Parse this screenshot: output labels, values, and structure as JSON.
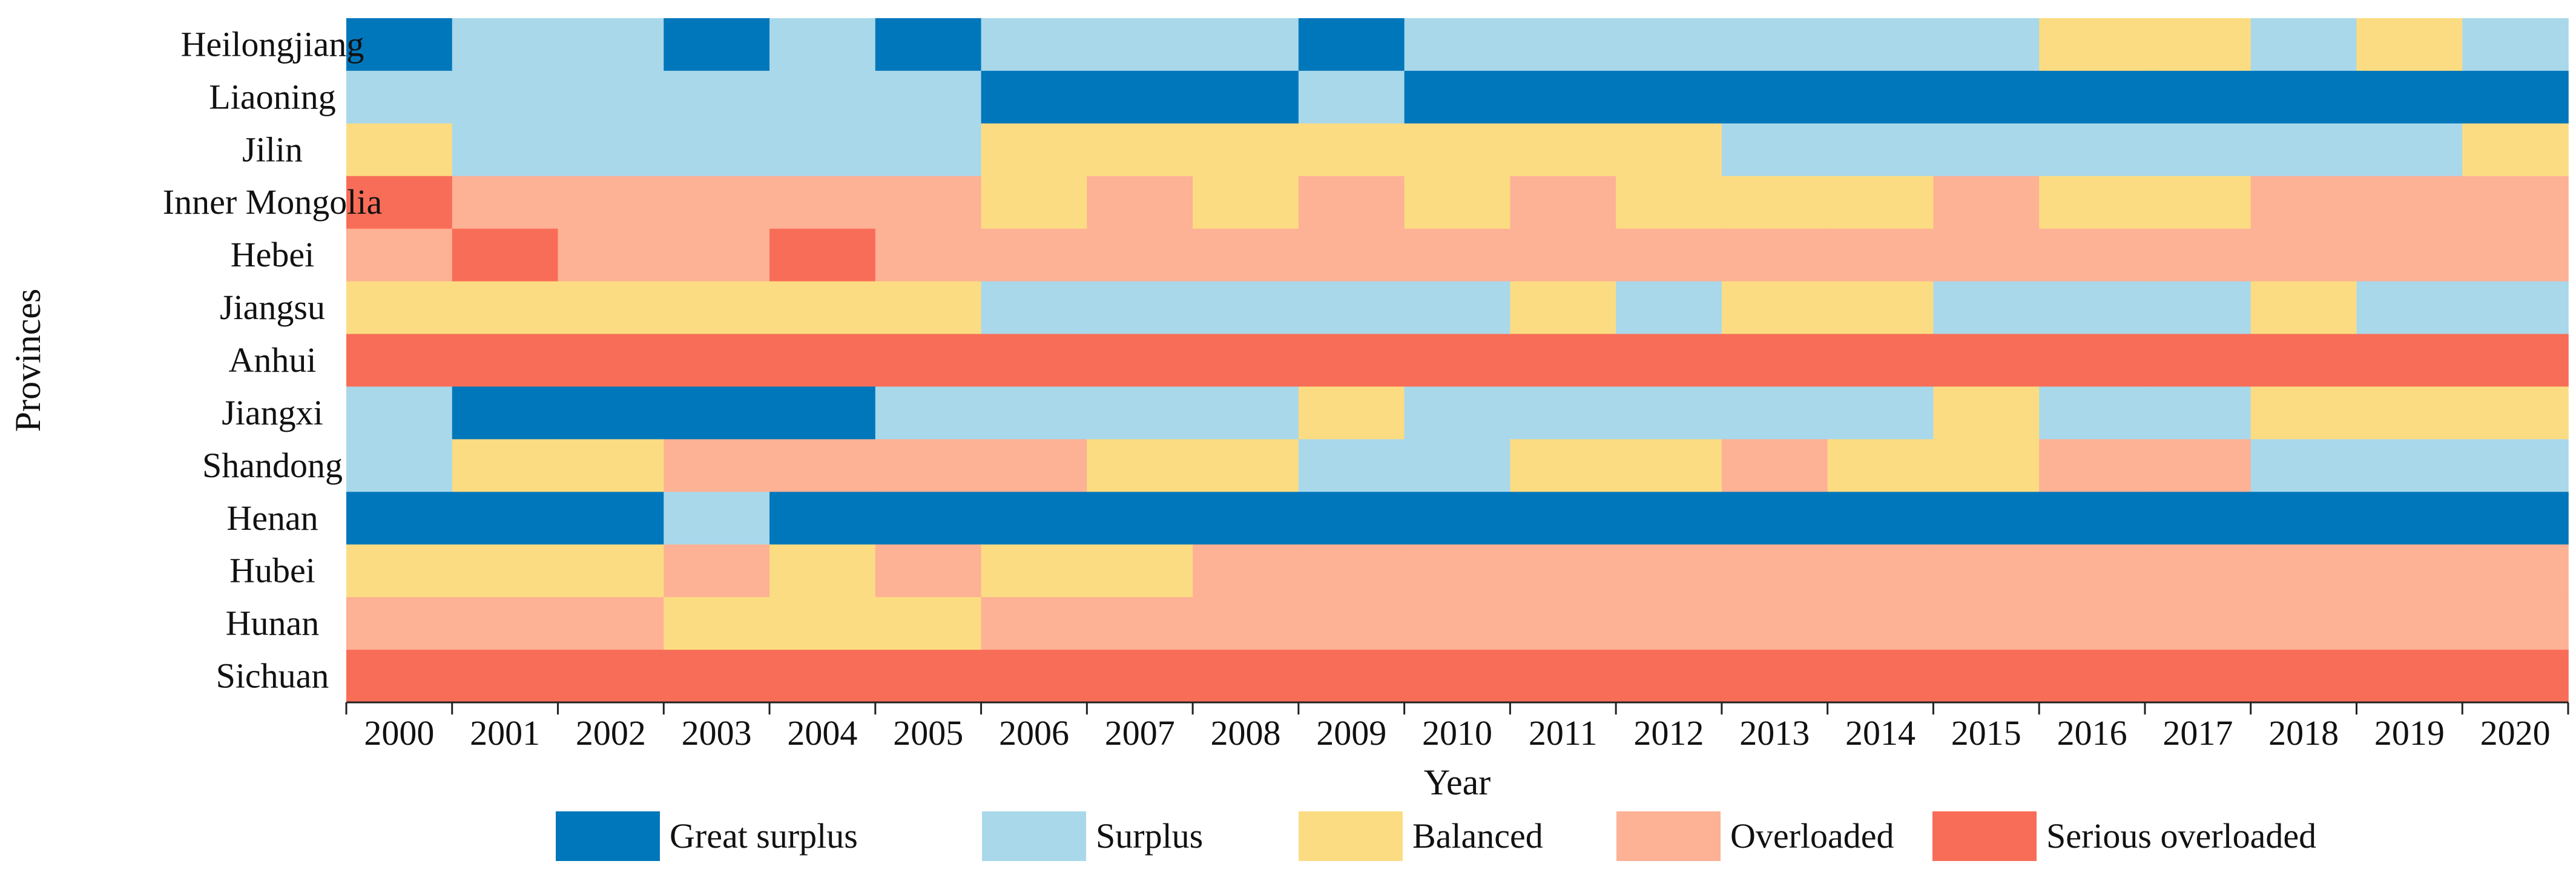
{
  "chart_data": {
    "type": "heatmap",
    "title": "",
    "xlabel": "Year",
    "ylabel": "Provinces",
    "x": [
      "2000",
      "2001",
      "2002",
      "2003",
      "2004",
      "2005",
      "2006",
      "2007",
      "2008",
      "2009",
      "2010",
      "2011",
      "2012",
      "2013",
      "2014",
      "2015",
      "2016",
      "2017",
      "2018",
      "2019",
      "2020"
    ],
    "y": [
      "Heilongjiang",
      "Liaoning",
      "Jilin",
      "Inner Mongolia",
      "Hebei",
      "Jiangsu",
      "Anhui",
      "Jiangxi",
      "Shandong",
      "Henan",
      "Hubei",
      "Hunan",
      "Sichuan"
    ],
    "categories": [
      {
        "code": "GS",
        "name": "Great surplus",
        "color": "#0077bb"
      },
      {
        "code": "S",
        "name": "Surplus",
        "color": "#a9d8ea"
      },
      {
        "code": "B",
        "name": "Balanced",
        "color": "#fcdc82"
      },
      {
        "code": "O",
        "name": "Overloaded",
        "color": "#fdb195"
      },
      {
        "code": "SO",
        "name": "Serious overloaded",
        "color": "#f86d57"
      }
    ],
    "values": [
      [
        "GS",
        "S",
        "S",
        "GS",
        "S",
        "GS",
        "S",
        "S",
        "S",
        "GS",
        "S",
        "S",
        "S",
        "S",
        "S",
        "S",
        "B",
        "B",
        "S",
        "B",
        "S"
      ],
      [
        "S",
        "S",
        "S",
        "S",
        "S",
        "S",
        "GS",
        "GS",
        "GS",
        "S",
        "GS",
        "GS",
        "GS",
        "GS",
        "GS",
        "GS",
        "GS",
        "GS",
        "GS",
        "GS",
        "GS"
      ],
      [
        "B",
        "S",
        "S",
        "S",
        "S",
        "S",
        "B",
        "B",
        "B",
        "B",
        "B",
        "B",
        "B",
        "S",
        "S",
        "S",
        "S",
        "S",
        "S",
        "S",
        "B"
      ],
      [
        "SO",
        "O",
        "O",
        "O",
        "O",
        "O",
        "B",
        "O",
        "B",
        "O",
        "B",
        "O",
        "B",
        "B",
        "B",
        "O",
        "B",
        "B",
        "O",
        "O",
        "O"
      ],
      [
        "O",
        "SO",
        "O",
        "O",
        "SO",
        "O",
        "O",
        "O",
        "O",
        "O",
        "O",
        "O",
        "O",
        "O",
        "O",
        "O",
        "O",
        "O",
        "O",
        "O",
        "O"
      ],
      [
        "B",
        "B",
        "B",
        "B",
        "B",
        "B",
        "S",
        "S",
        "S",
        "S",
        "S",
        "B",
        "S",
        "B",
        "B",
        "S",
        "S",
        "S",
        "B",
        "S",
        "S"
      ],
      [
        "SO",
        "SO",
        "SO",
        "SO",
        "SO",
        "SO",
        "SO",
        "SO",
        "SO",
        "SO",
        "SO",
        "SO",
        "SO",
        "SO",
        "SO",
        "SO",
        "SO",
        "SO",
        "SO",
        "SO",
        "SO"
      ],
      [
        "S",
        "GS",
        "GS",
        "GS",
        "GS",
        "S",
        "S",
        "S",
        "S",
        "B",
        "S",
        "S",
        "S",
        "S",
        "S",
        "B",
        "S",
        "S",
        "B",
        "B",
        "B"
      ],
      [
        "S",
        "B",
        "B",
        "O",
        "O",
        "O",
        "O",
        "B",
        "B",
        "S",
        "S",
        "B",
        "B",
        "O",
        "B",
        "B",
        "O",
        "O",
        "S",
        "S",
        "S"
      ],
      [
        "GS",
        "GS",
        "GS",
        "S",
        "GS",
        "GS",
        "GS",
        "GS",
        "GS",
        "GS",
        "GS",
        "GS",
        "GS",
        "GS",
        "GS",
        "GS",
        "GS",
        "GS",
        "GS",
        "GS",
        "GS"
      ],
      [
        "B",
        "B",
        "B",
        "O",
        "B",
        "O",
        "B",
        "B",
        "O",
        "O",
        "O",
        "O",
        "O",
        "O",
        "O",
        "O",
        "O",
        "O",
        "O",
        "O",
        "O"
      ],
      [
        "O",
        "O",
        "O",
        "B",
        "B",
        "B",
        "O",
        "O",
        "O",
        "O",
        "O",
        "O",
        "O",
        "O",
        "O",
        "O",
        "O",
        "O",
        "O",
        "O",
        "O"
      ],
      [
        "SO",
        "SO",
        "SO",
        "SO",
        "SO",
        "SO",
        "SO",
        "SO",
        "SO",
        "SO",
        "SO",
        "SO",
        "SO",
        "SO",
        "SO",
        "SO",
        "SO",
        "SO",
        "SO",
        "SO",
        "SO"
      ]
    ],
    "legend_position": "bottom",
    "grid": false
  }
}
